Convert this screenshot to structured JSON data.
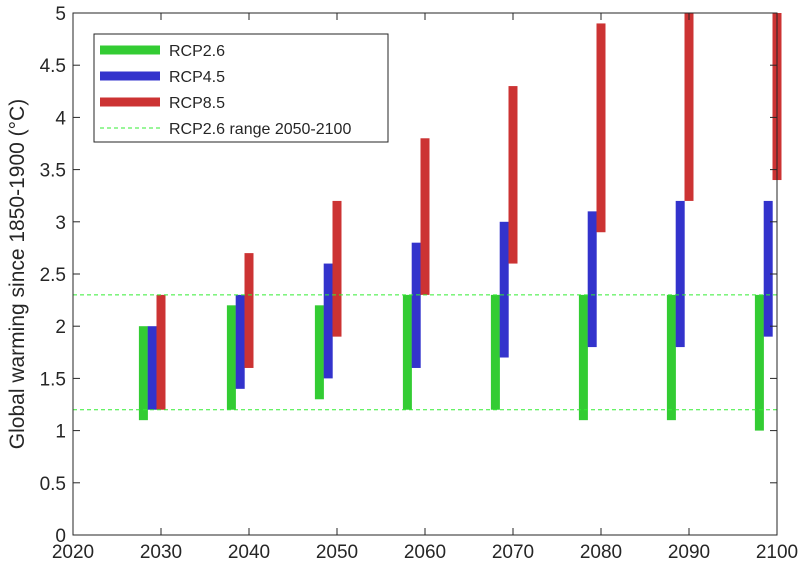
{
  "chart_data": {
    "type": "bar",
    "subtype": "floating-range",
    "title": "",
    "xlabel": "",
    "ylabel": "Global warming since 1850-1900 (°C)",
    "xlim": [
      2020,
      2100
    ],
    "ylim": [
      0,
      5
    ],
    "xticks": [
      "2020",
      "2030",
      "2040",
      "2050",
      "2060",
      "2070",
      "2080",
      "2090",
      "2100"
    ],
    "yticks": [
      "0",
      "0.5",
      "1",
      "1.5",
      "2",
      "2.5",
      "3",
      "3.5",
      "4",
      "4.5",
      "5"
    ],
    "grid": false,
    "legend_position": "top-left",
    "categories": [
      "2030",
      "2040",
      "2050",
      "2060",
      "2070",
      "2080",
      "2090",
      "2100"
    ],
    "series": [
      {
        "name": "RCP2.6",
        "color": "#33cc33",
        "x": [
          2028,
          2038,
          2048,
          2058,
          2068,
          2078,
          2088,
          2098
        ],
        "low": [
          1.1,
          1.2,
          1.3,
          1.2,
          1.2,
          1.1,
          1.1,
          1.0
        ],
        "high": [
          2.0,
          2.2,
          2.2,
          2.3,
          2.3,
          2.3,
          2.3,
          2.3
        ]
      },
      {
        "name": "RCP4.5",
        "color": "#3333cc",
        "x": [
          2029,
          2039,
          2049,
          2059,
          2069,
          2079,
          2089,
          2099
        ],
        "low": [
          1.2,
          1.4,
          1.5,
          1.6,
          1.7,
          1.8,
          1.8,
          1.9
        ],
        "high": [
          2.0,
          2.3,
          2.6,
          2.8,
          3.0,
          3.1,
          3.2,
          3.2
        ]
      },
      {
        "name": "RCP8.5",
        "color": "#cc3333",
        "x": [
          2030,
          2040,
          2050,
          2060,
          2070,
          2080,
          2090,
          2100
        ],
        "low": [
          1.2,
          1.6,
          1.9,
          2.3,
          2.6,
          2.9,
          3.2,
          3.4
        ],
        "high": [
          2.3,
          2.7,
          3.2,
          3.8,
          4.3,
          4.9,
          5.0,
          5.0
        ]
      }
    ],
    "reference_lines": {
      "name": "RCP2.6 range 2050-2100",
      "color": "#33ee33",
      "style": "dashed",
      "values": [
        1.2,
        2.3
      ]
    }
  }
}
